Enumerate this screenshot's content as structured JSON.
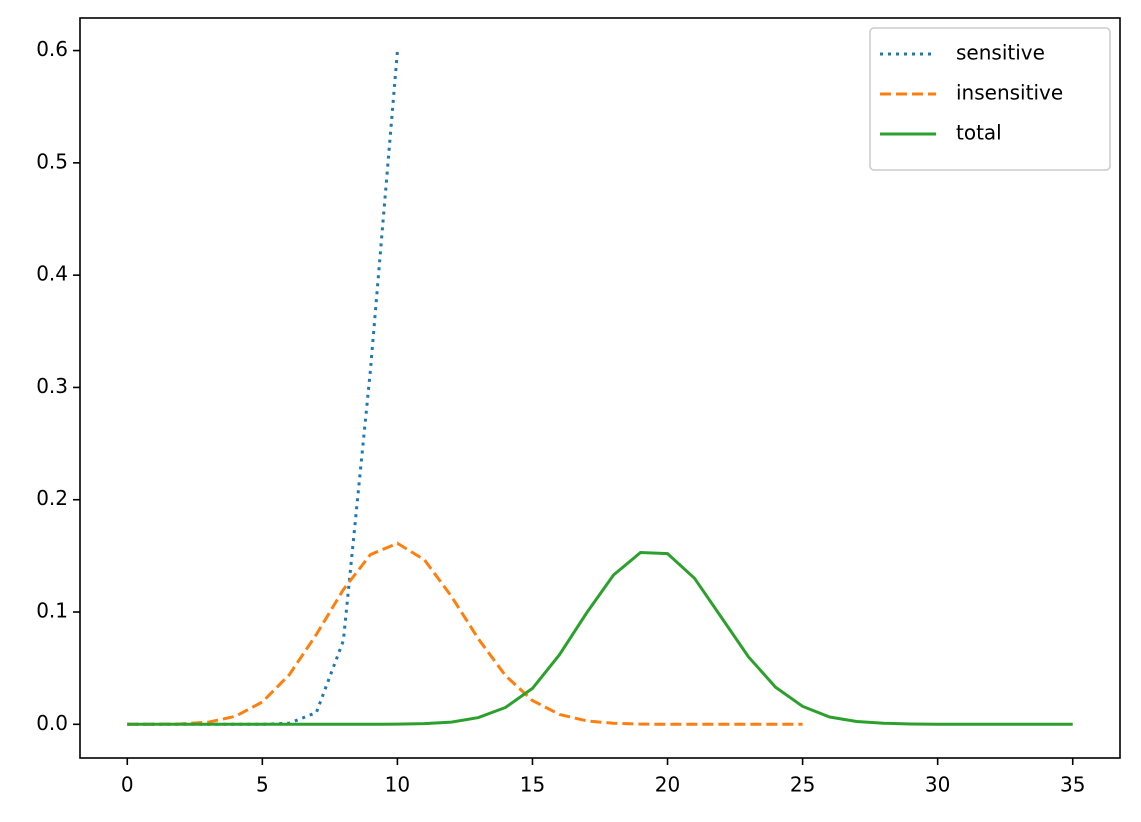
{
  "chart_data": {
    "type": "line",
    "series": [
      {
        "name": "sensitive",
        "color": "#1f77b4",
        "linestyle": "dotted",
        "x": [
          0,
          1,
          2,
          3,
          4,
          5,
          6,
          7,
          8,
          9,
          10
        ],
        "values": [
          0,
          0,
          0,
          0,
          0,
          0,
          0.001,
          0.0105,
          0.0746,
          0.315,
          0.599
        ]
      },
      {
        "name": "insensitive",
        "color": "#ff7f0e",
        "linestyle": "dashed",
        "x": [
          0,
          1,
          2,
          3,
          4,
          5,
          6,
          7,
          8,
          9,
          10,
          11,
          12,
          13,
          14,
          15,
          16,
          17,
          18,
          19,
          20,
          21,
          22,
          23,
          24,
          25
        ],
        "values": [
          0,
          0,
          0.0004,
          0.0019,
          0.0071,
          0.0199,
          0.0442,
          0.08,
          0.12,
          0.1511,
          0.1612,
          0.1465,
          0.114,
          0.076,
          0.0434,
          0.0212,
          0.0088,
          0.0031,
          0.0009,
          0.0002,
          0,
          0,
          0,
          0,
          0,
          0
        ]
      },
      {
        "name": "total",
        "color": "#2ca02c",
        "linestyle": "solid",
        "x": [
          0,
          1,
          2,
          3,
          4,
          5,
          6,
          7,
          8,
          9,
          10,
          11,
          12,
          13,
          14,
          15,
          16,
          17,
          18,
          19,
          20,
          21,
          22,
          23,
          24,
          25,
          26,
          27,
          28,
          29,
          30,
          31,
          32,
          33,
          34,
          35
        ],
        "values": [
          0,
          0,
          0,
          0,
          0,
          0,
          0,
          0,
          0,
          0,
          0.0002,
          0.0006,
          0.002,
          0.006,
          0.015,
          0.032,
          0.062,
          0.099,
          0.133,
          0.153,
          0.152,
          0.13,
          0.095,
          0.06,
          0.033,
          0.016,
          0.0065,
          0.0025,
          0.001,
          0.0003,
          0,
          0,
          0,
          0,
          0,
          0
        ]
      }
    ],
    "xlim": [
      -1.75,
      36.75
    ],
    "xticks": [
      0,
      5,
      10,
      15,
      20,
      25,
      30,
      35
    ],
    "ylim": [
      -0.03,
      0.629
    ],
    "yticks": [
      {
        "value": 0,
        "label": "0.0"
      },
      0.1,
      0.2,
      0.3,
      0.4,
      0.5,
      0.6
    ],
    "grid": false,
    "legend": "upper right"
  }
}
